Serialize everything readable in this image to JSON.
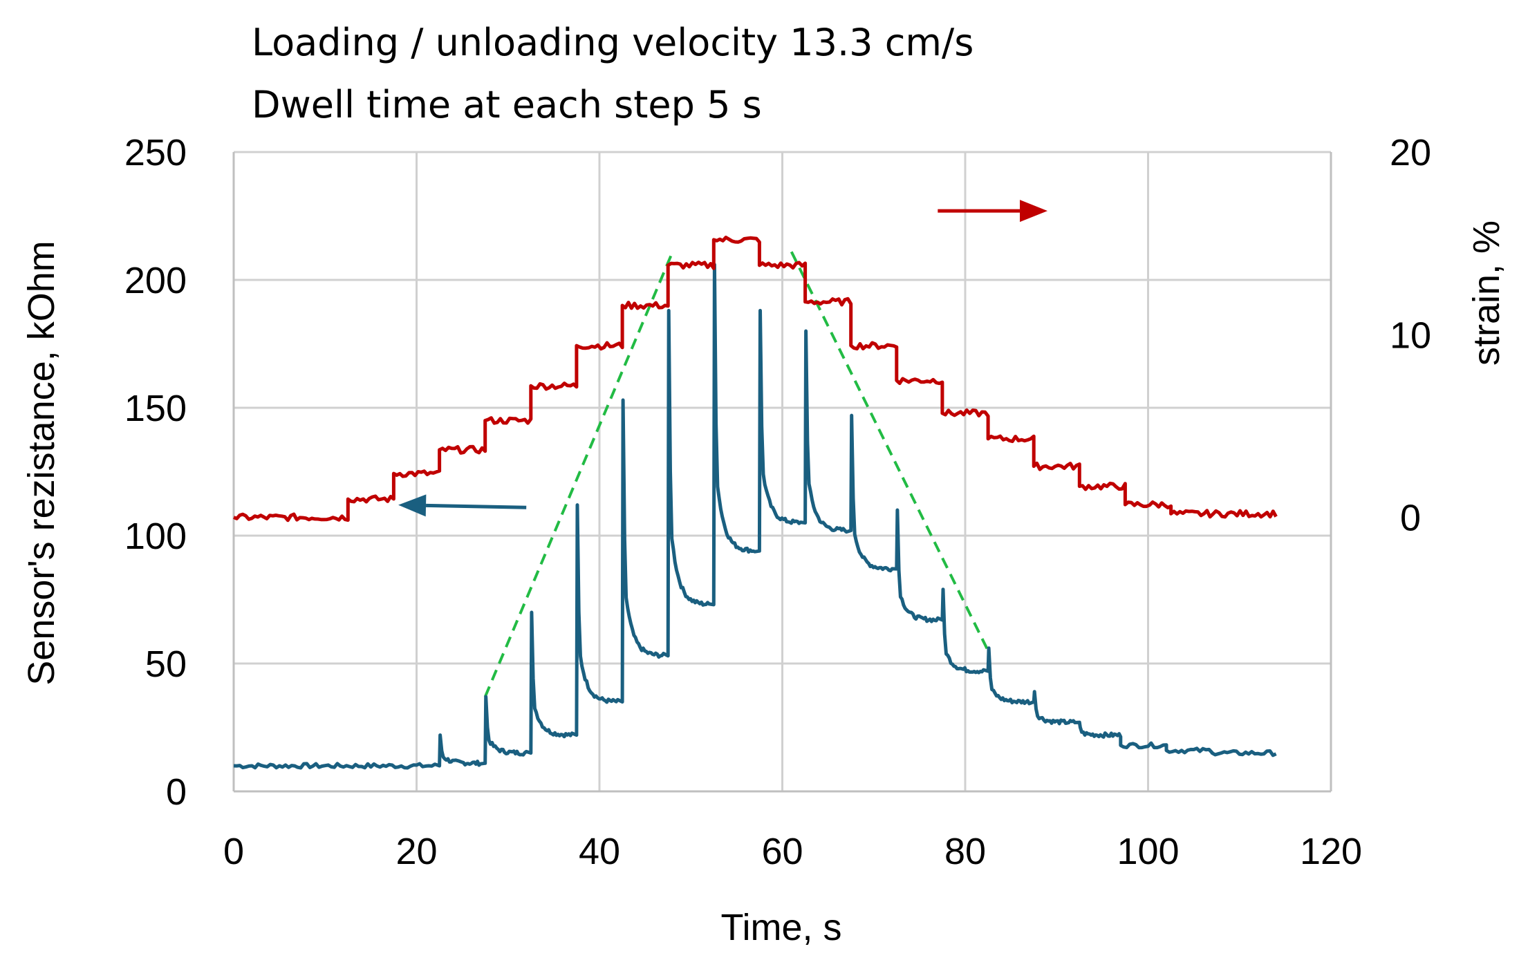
{
  "chart_data": {
    "type": "line",
    "annotations": [
      "Loading / unloading velocity 13.3 cm/s",
      "Dwell time at each step 5 s"
    ],
    "xlabel": "Time, s",
    "ylabel": "Sensor's rezistance, kOhm",
    "y2label": "strain, %",
    "xlim": [
      0,
      120
    ],
    "ylim": [
      0,
      250
    ],
    "y2lim": [
      -15,
      20
    ],
    "x_ticks": [
      "0",
      "20",
      "40",
      "60",
      "80",
      "100",
      "120"
    ],
    "y_ticks": [
      "0",
      "50",
      "100",
      "150",
      "200",
      "250"
    ],
    "y2_ticks": [
      "0",
      "10",
      "20"
    ],
    "grid": true,
    "series": [
      {
        "axis": "left",
        "color": "#1a5f80",
        "steps": [
          [
            0,
            10
          ],
          [
            22,
            11
          ],
          [
            27,
            15
          ],
          [
            32,
            22
          ],
          [
            37,
            35
          ],
          [
            42,
            53
          ],
          [
            47,
            73
          ],
          [
            52,
            94
          ],
          [
            57,
            105
          ],
          [
            62,
            102
          ],
          [
            67,
            87
          ],
          [
            72,
            67
          ],
          [
            77,
            47
          ],
          [
            82,
            35
          ],
          [
            87,
            27
          ],
          [
            92,
            22
          ],
          [
            97,
            18
          ],
          [
            102,
            16
          ],
          [
            107,
            15
          ]
        ],
        "end": 114,
        "spikes": [
          [
            17.5,
            14
          ],
          [
            22.5,
            22
          ],
          [
            27.5,
            37
          ],
          [
            32.5,
            70
          ],
          [
            37.5,
            112
          ],
          [
            42.5,
            153
          ],
          [
            47.5,
            188
          ],
          [
            52.5,
            206
          ],
          [
            57.5,
            188
          ],
          [
            62.5,
            180
          ],
          [
            67.5,
            147
          ],
          [
            72.5,
            110
          ],
          [
            77.5,
            79
          ],
          [
            82.5,
            56
          ],
          [
            87.5,
            39
          ],
          [
            92.5,
            25
          ]
        ]
      },
      {
        "axis": "right",
        "color": "#c00000",
        "steps": [
          [
            0,
            0
          ],
          [
            12.5,
            1
          ],
          [
            17.5,
            2.4
          ],
          [
            22.5,
            3.7
          ],
          [
            27.5,
            5.3
          ],
          [
            32.5,
            7.2
          ],
          [
            37.5,
            9.4
          ],
          [
            42.5,
            11.6
          ],
          [
            47.5,
            13.8
          ],
          [
            52.5,
            15.2
          ],
          [
            57.5,
            13.8
          ],
          [
            62.5,
            11.8
          ],
          [
            67.5,
            9.4
          ],
          [
            72.5,
            7.5
          ],
          [
            77.5,
            5.7
          ],
          [
            82.5,
            4.3
          ],
          [
            87.5,
            2.8
          ],
          [
            92.5,
            1.7
          ],
          [
            97.5,
            0.7
          ],
          [
            102.5,
            0.2
          ]
        ],
        "end": 114
      }
    ],
    "guides": {
      "color": "#22bb44",
      "rising": [
        [
          27.5,
          37
        ],
        [
          48,
          211
        ]
      ],
      "falling": [
        [
          61,
          211
        ],
        [
          82.5,
          55
        ]
      ]
    },
    "arrows": [
      {
        "color": "#c00000",
        "direction": "right",
        "from": [
          77,
          227
        ],
        "to": [
          89,
          227
        ]
      },
      {
        "color": "#1a5f80",
        "direction": "left",
        "from": [
          32,
          111
        ],
        "to": [
          18,
          112
        ]
      }
    ]
  }
}
